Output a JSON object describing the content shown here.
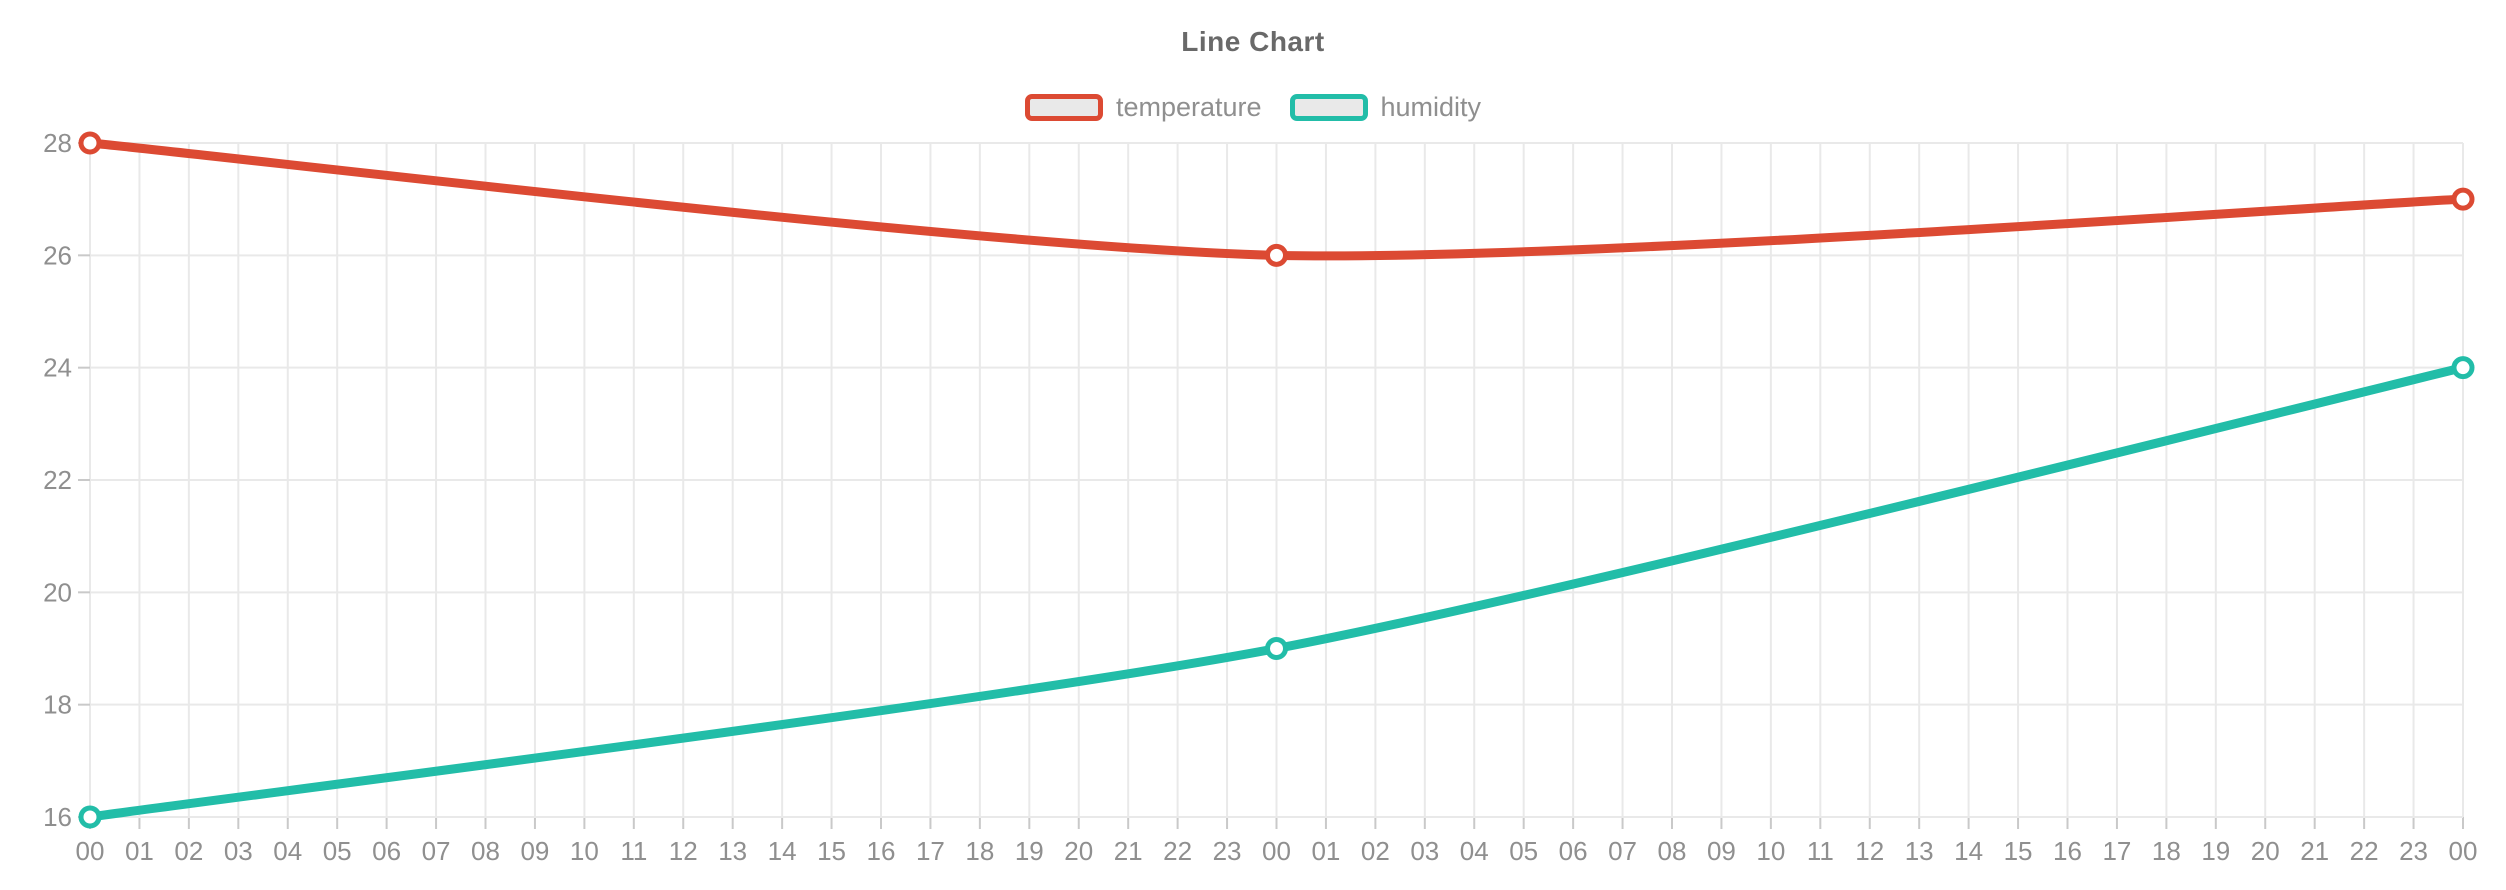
{
  "title": "Line Chart",
  "legend": {
    "position": "top",
    "items": [
      {
        "label": "temperature",
        "color": "#dc4a33"
      },
      {
        "label": "humidity",
        "color": "#22bda8"
      }
    ]
  },
  "colors": {
    "temperature": "#dc4a33",
    "humidity": "#22bda8",
    "grid": "#e9e9e9",
    "tick": "#c9c9c9",
    "axis_label": "#8f8f8f",
    "title": "#696969",
    "legend_fill": "#e9e9e9",
    "marker_fill": "#ffffff",
    "background": "#ffffff"
  },
  "chart_data": {
    "type": "line",
    "title": "Line Chart",
    "x": [
      "00",
      "01",
      "02",
      "03",
      "04",
      "05",
      "06",
      "07",
      "08",
      "09",
      "10",
      "11",
      "12",
      "13",
      "14",
      "15",
      "16",
      "17",
      "18",
      "19",
      "20",
      "21",
      "22",
      "23",
      "00",
      "01",
      "02",
      "03",
      "04",
      "05",
      "06",
      "07",
      "08",
      "09",
      "10",
      "11",
      "12",
      "13",
      "14",
      "15",
      "16",
      "17",
      "18",
      "19",
      "20",
      "21",
      "22",
      "23",
      "00"
    ],
    "series": [
      {
        "name": "temperature",
        "color": "#dc4a33",
        "points": [
          {
            "i": 0,
            "v": 28
          },
          {
            "i": 24,
            "v": 26
          },
          {
            "i": 48,
            "v": 27
          }
        ]
      },
      {
        "name": "humidity",
        "color": "#22bda8",
        "points": [
          {
            "i": 0,
            "v": 16
          },
          {
            "i": 24,
            "v": 19
          },
          {
            "i": 48,
            "v": 24
          }
        ]
      }
    ],
    "yticks": [
      16,
      18,
      20,
      22,
      24,
      26,
      28
    ],
    "ylim": [
      16,
      28
    ],
    "xlabel": "",
    "ylabel": "",
    "grid": "on",
    "legend_position": "top",
    "marker": "hollow-circle"
  }
}
